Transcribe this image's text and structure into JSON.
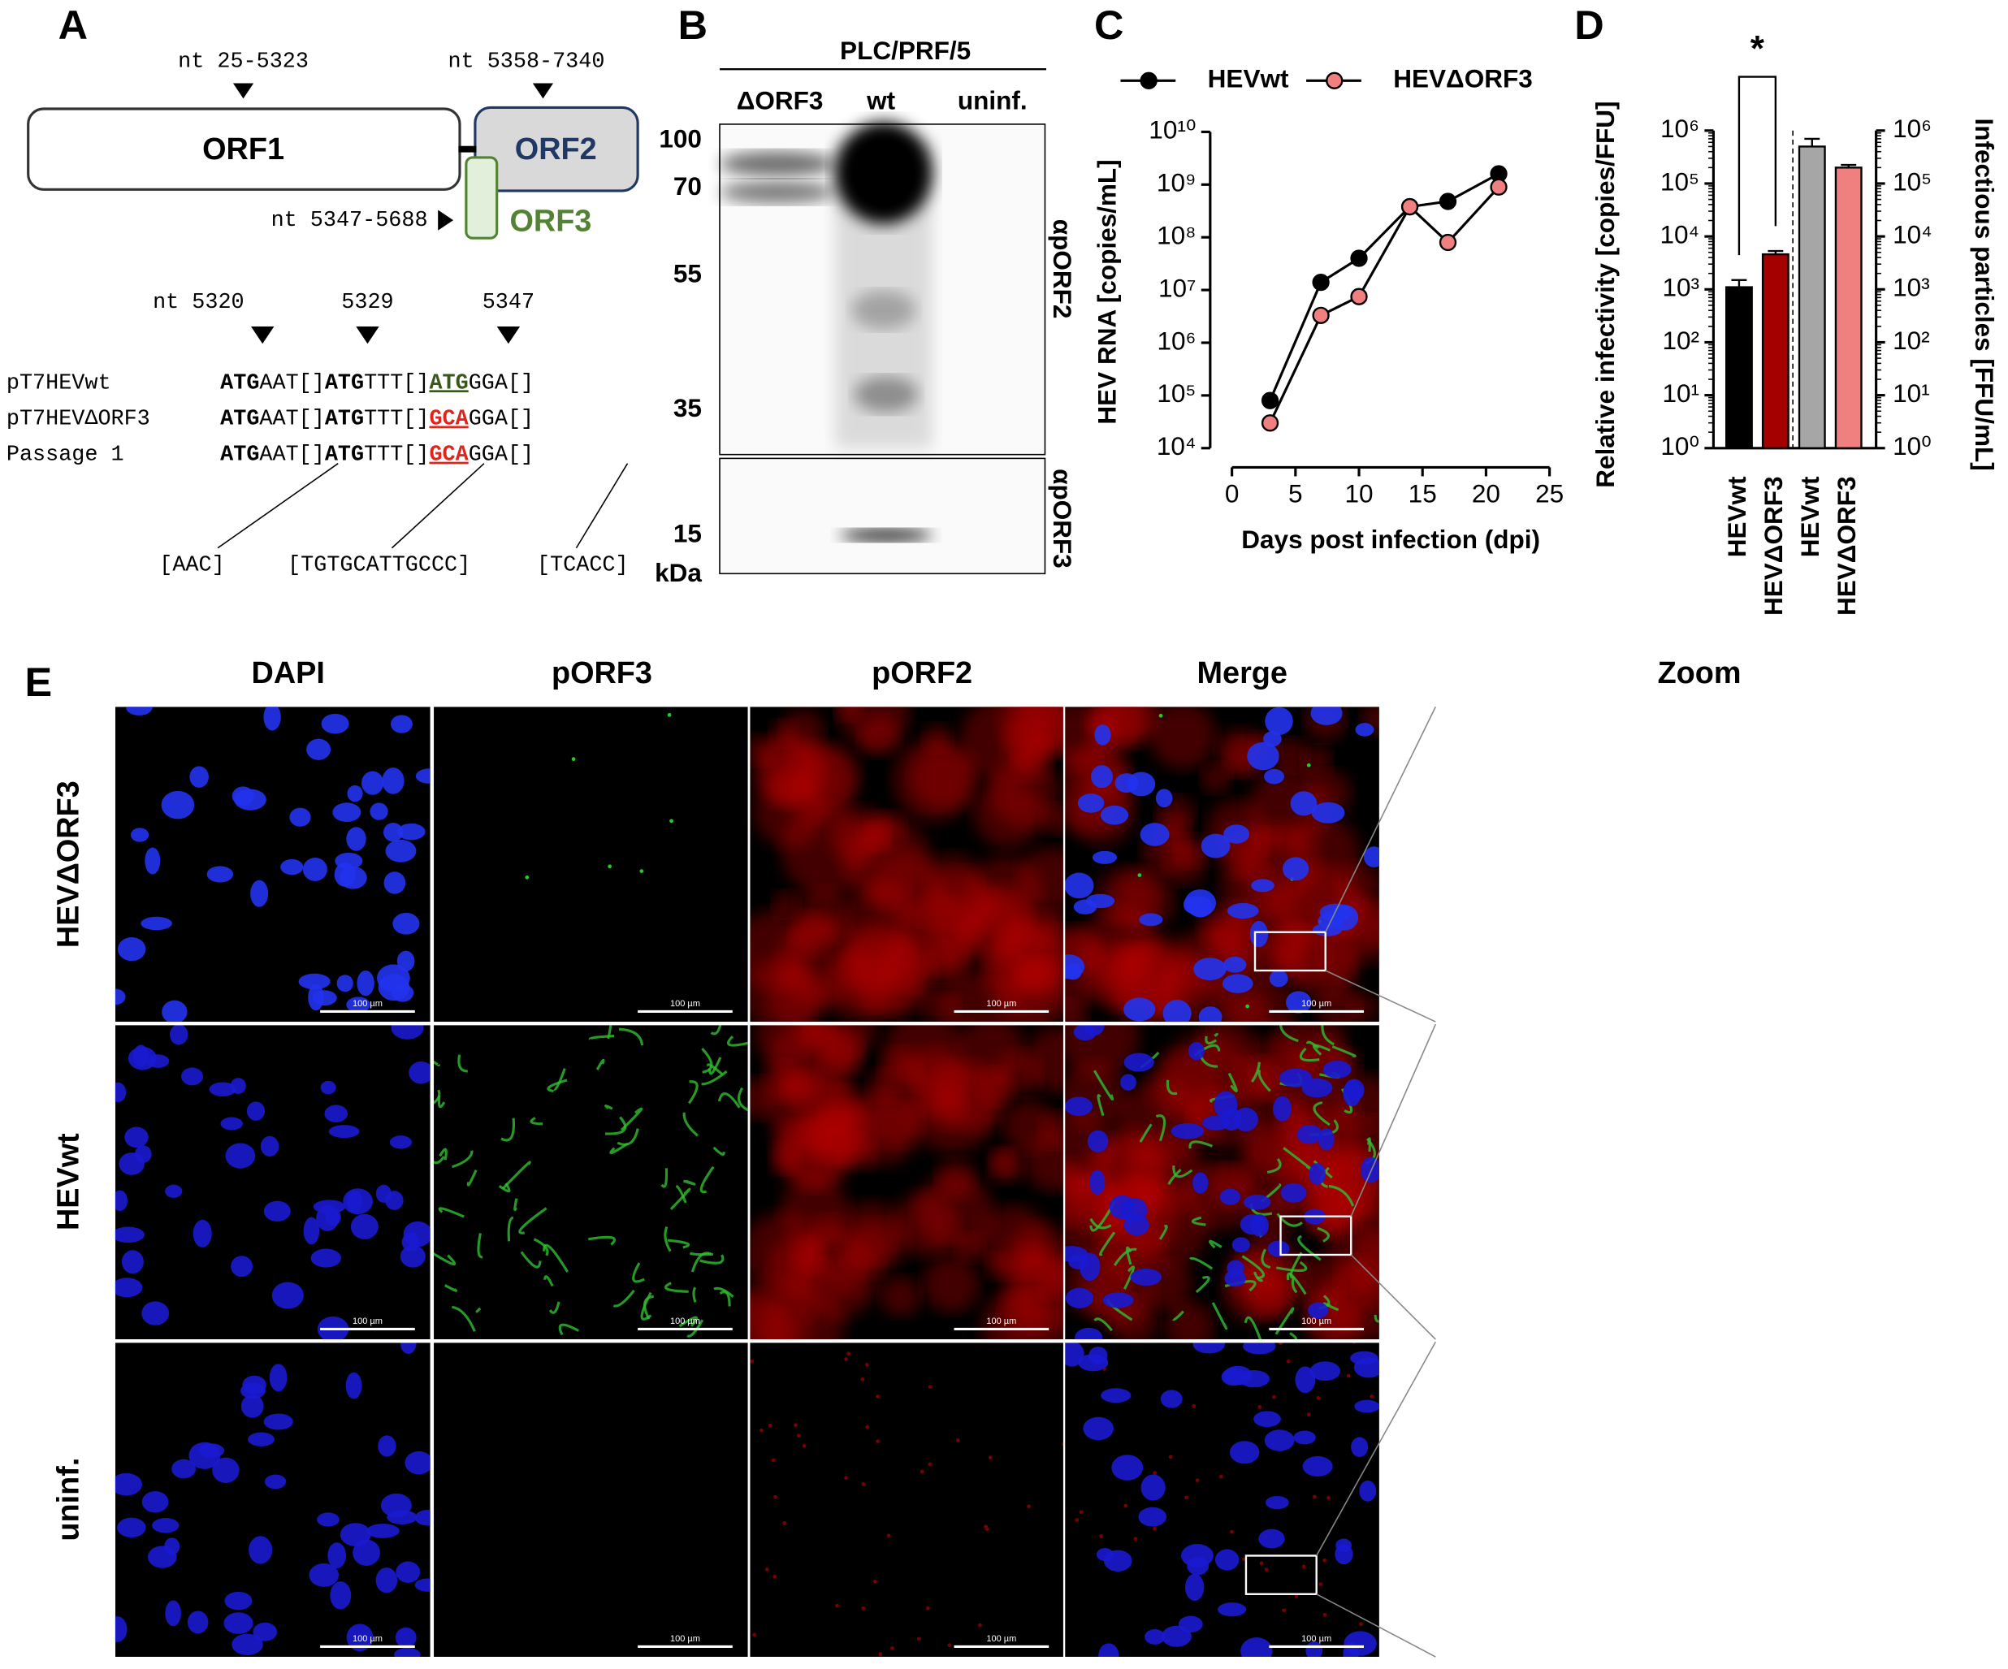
{
  "panel_labels": [
    "A",
    "B",
    "C",
    "D",
    "E"
  ],
  "genome": {
    "orf1": "ORF1",
    "orf2": "ORF2",
    "orf3": "ORF3",
    "orf1_range": "nt 25-5323",
    "orf2_range": "nt 5358-7340",
    "orf3_range": "nt 5347-5688",
    "positions": [
      "nt  5320",
      "5329",
      "5347"
    ],
    "sequences": [
      {
        "name": "pT7HEVwt",
        "parts": [
          "ATG",
          "AAT[]",
          "ATG",
          "TTT[]",
          "ATG",
          "GGA[]"
        ]
      },
      {
        "name": "pT7HEVΔORF3",
        "parts": [
          "ATG",
          "AAT[]",
          "ATG",
          "TTT[]",
          "GCA",
          "GGA[]"
        ]
      },
      {
        "name": "Passage 1",
        "parts": [
          "ATG",
          "AAT[]",
          "ATG",
          "TTT[]",
          "GCA",
          "GGA[]"
        ]
      }
    ],
    "inserts": [
      "[AAC]",
      "[TGTGCATTGCCC]",
      "[TCACC]"
    ]
  },
  "blot": {
    "cell_line": "PLC/PRF/5",
    "lanes": [
      "ΔORF3",
      "wt",
      "uninf."
    ],
    "markers": [
      100,
      70,
      55,
      35,
      15
    ],
    "unit": "kDa",
    "antibodies": [
      "αpORF2",
      "αpORF3"
    ]
  },
  "chart_data": [
    {
      "type": "line",
      "y_label": "HEV RNA [copies/mL]",
      "x_label": "Days post infection (dpi)",
      "x": [
        3,
        7,
        10,
        14,
        17,
        21
      ],
      "xlim": [
        0,
        25
      ],
      "xticks": [
        0,
        5,
        10,
        15,
        20,
        25
      ],
      "log_y": true,
      "ylim": [
        10000,
        10000000000
      ],
      "yticks": [
        {
          "value": 10000,
          "label": "10⁴"
        },
        {
          "value": 100000,
          "label": "10⁵"
        },
        {
          "value": 1000000,
          "label": "10⁶"
        },
        {
          "value": 10000000,
          "label": "10⁷"
        },
        {
          "value": 100000000,
          "label": "10⁸"
        },
        {
          "value": 1000000000,
          "label": "10⁹"
        },
        {
          "value": 10000000000,
          "label": "10¹⁰"
        }
      ],
      "series": [
        {
          "name": "HEVwt",
          "color": "#000000",
          "values": [
            80000,
            14000000,
            40000000,
            380000000,
            480000000,
            1600000000
          ]
        },
        {
          "name": "HEVΔORF3",
          "color": "#f08080",
          "values": [
            30000,
            3300000,
            7500000,
            380000000,
            80000000,
            900000000
          ]
        }
      ]
    },
    {
      "type": "bar",
      "y_label": "Relative infectivity [copies/FFU]",
      "y2_label": "Infectious particles [FFU/mL]",
      "categories": [
        "HEVwt",
        "HEVΔORF3",
        "HEVwt",
        "HEVΔORF3"
      ],
      "values": [
        1100,
        4600,
        500000,
        200000
      ],
      "errors": [
        400,
        700,
        200000,
        25000
      ],
      "colors": [
        "#000000",
        "#a50000",
        "#a6a6a6",
        "#f08080"
      ],
      "axes": [
        "y",
        "y",
        "y2",
        "y2"
      ],
      "log_y": true,
      "ylim": [
        1,
        1000000
      ],
      "y2lim": [
        1,
        1000000
      ],
      "yticks": [
        {
          "value": 1,
          "label": "10⁰"
        },
        {
          "value": 10,
          "label": "10¹"
        },
        {
          "value": 100,
          "label": "10²"
        },
        {
          "value": 1000,
          "label": "10³"
        },
        {
          "value": 10000,
          "label": "10⁴"
        },
        {
          "value": 100000,
          "label": "10⁵"
        },
        {
          "value": 1000000,
          "label": "10⁶"
        }
      ],
      "y2ticks": [
        {
          "value": 1,
          "label": "10⁰"
        },
        {
          "value": 10,
          "label": "10¹"
        },
        {
          "value": 100,
          "label": "10²"
        },
        {
          "value": 1000,
          "label": "10³"
        },
        {
          "value": 10000,
          "label": "10⁴"
        },
        {
          "value": 100000,
          "label": "10⁵"
        },
        {
          "value": 1000000,
          "label": "10⁶"
        }
      ],
      "annotation": "*"
    }
  ],
  "microscopy": {
    "columns": [
      "DAPI",
      "pORF3",
      "pORF2",
      "Merge",
      "Zoom"
    ],
    "rows": [
      "HEVΔORF3",
      "HEVwt",
      "uninf."
    ],
    "scale_bar": "100 µm"
  }
}
